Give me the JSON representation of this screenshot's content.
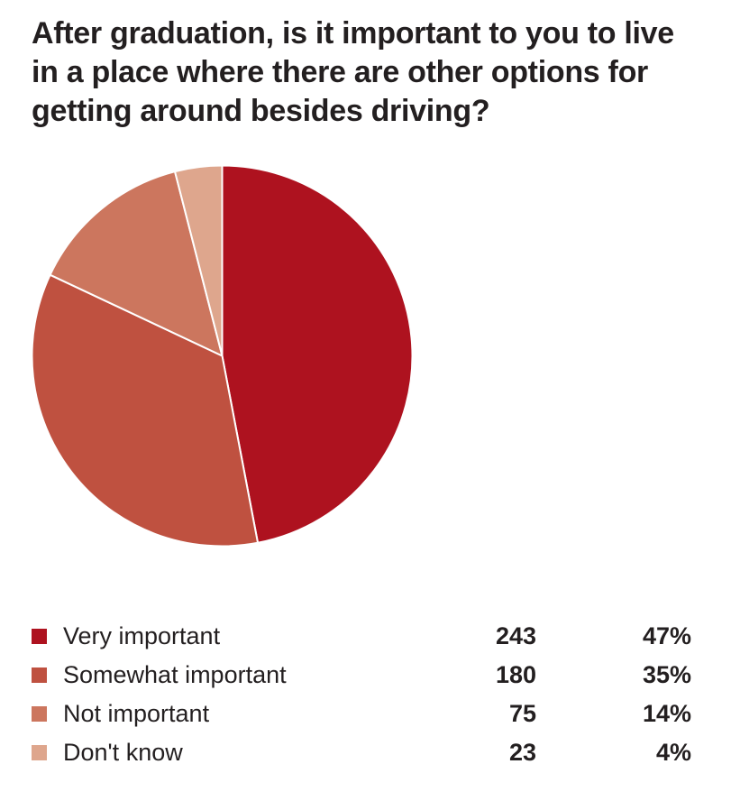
{
  "page": {
    "background_color": "#FFFFFF",
    "text_color": "#231F20"
  },
  "title": "After graduation, is it important to you to live in a place where there are other options for getting around besides driving?",
  "title_lines": [
    "After graduation, is it important to you to live",
    "in a place where there are other options for",
    "getting around besides driving?"
  ],
  "chart_data": {
    "type": "pie",
    "title": "After graduation, is it important to you to live in a place where there are other options for getting around besides driving?",
    "start_angle_deg": 0,
    "direction": "clockwise",
    "separator_color": "#FFFFFF",
    "legend_position": "bottom",
    "slices": [
      {
        "label": "Very important",
        "count": 243,
        "pct": 47,
        "percent_label": "47%",
        "color": "#AE121F"
      },
      {
        "label": "Somewhat important",
        "count": 180,
        "pct": 35,
        "percent_label": "35%",
        "color": "#BF5140"
      },
      {
        "label": "Not important",
        "count": 75,
        "pct": 14,
        "percent_label": "14%",
        "color": "#CC765E"
      },
      {
        "label": "Don't know",
        "count": 23,
        "pct": 4,
        "percent_label": "4%",
        "color": "#DEA68D"
      }
    ]
  }
}
